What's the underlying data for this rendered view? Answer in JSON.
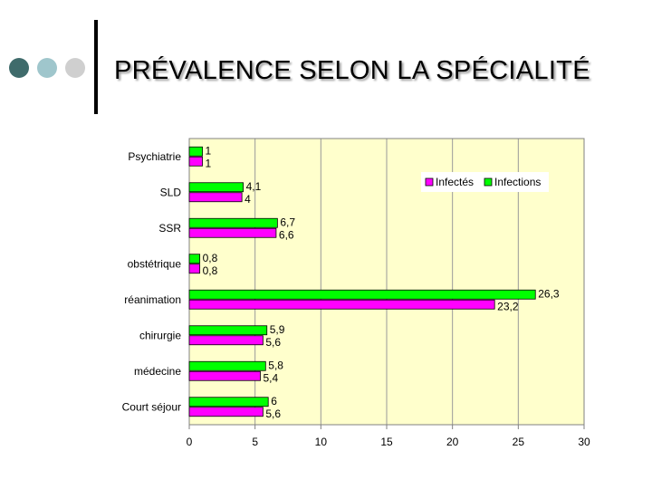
{
  "slide": {
    "title": "PRÉVALENCE SELON LA SPÉCIALITÉ",
    "decor_colors": [
      "#3f6b6b",
      "#9fc6cc",
      "#cfcfcf"
    ]
  },
  "chart_data": {
    "type": "bar",
    "orientation": "horizontal",
    "title": "",
    "xlabel": "",
    "ylabel": "",
    "categories": [
      "Psychiatrie",
      "SLD",
      "SSR",
      "obstétrique",
      "réanimation",
      "chirurgie",
      "médecine",
      "Court séjour"
    ],
    "series": [
      {
        "name": "Infectés",
        "color": "#ff00ff",
        "values": [
          1,
          4,
          6.6,
          0.8,
          23.2,
          5.6,
          5.4,
          5.6
        ],
        "labels": [
          "1",
          "4",
          "6,6",
          "0,8",
          "23,2",
          "5,6",
          "5,4",
          "5,6"
        ]
      },
      {
        "name": "Infections",
        "color": "#00ff00",
        "values": [
          1,
          4.1,
          6.7,
          0.8,
          26.3,
          5.9,
          5.8,
          6
        ],
        "labels": [
          "1",
          "4,1",
          "6,7",
          "0,8",
          "26,3",
          "5,9",
          "5,8",
          "6"
        ]
      }
    ],
    "xlim": [
      0,
      30
    ],
    "xticks": [
      0,
      5,
      10,
      15,
      20,
      25,
      30
    ],
    "grid": "vertical",
    "legend": "top-right",
    "plot_background": "#ffffcc"
  }
}
